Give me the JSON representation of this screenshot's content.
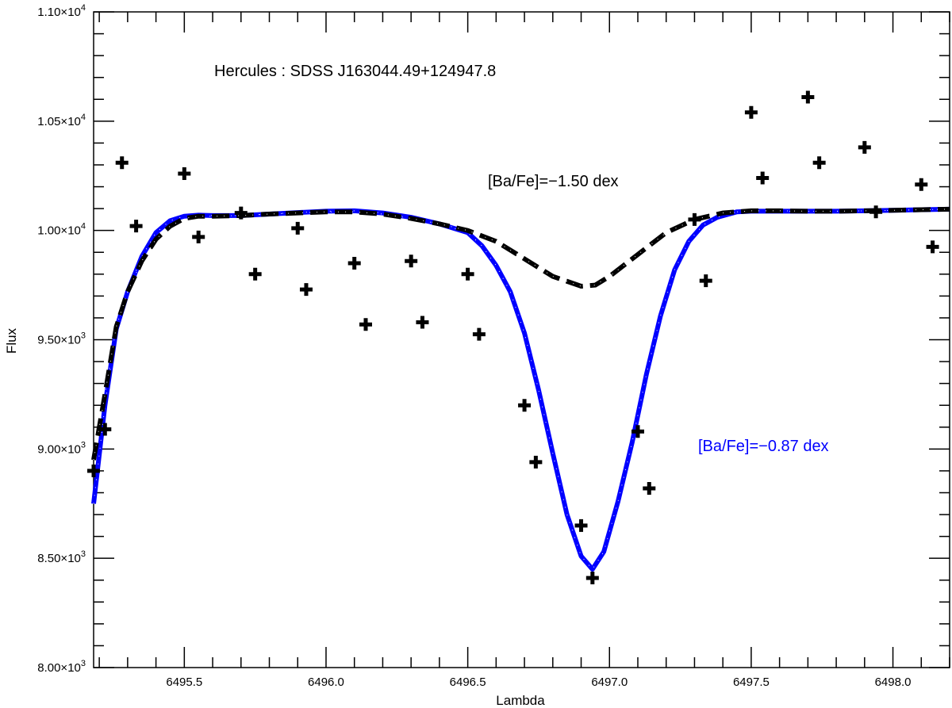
{
  "chart_data": {
    "type": "line",
    "title": "Hercules : SDSS J163044.49+124947.8",
    "xlabel": "Lambda",
    "ylabel": "Flux",
    "xlim": [
      6495.18,
      6498.2
    ],
    "ylim": [
      8000,
      11000
    ],
    "x_ticks": [
      6495.5,
      6496.0,
      6496.5,
      6497.0,
      6497.5,
      6498.0
    ],
    "x_tick_labels": [
      "6495.5",
      "6496.0",
      "6496.5",
      "6497.0",
      "6497.5",
      "6498.0"
    ],
    "y_ticks": [
      8000,
      8500,
      9000,
      9500,
      10000,
      10500,
      11000
    ],
    "y_tick_labels": [
      {
        "mantissa": "8.00",
        "exp": "3"
      },
      {
        "mantissa": "8.50",
        "exp": "3"
      },
      {
        "mantissa": "9.00",
        "exp": "3"
      },
      {
        "mantissa": "9.50",
        "exp": "3"
      },
      {
        "mantissa": "1.00",
        "exp": "4"
      },
      {
        "mantissa": "1.05",
        "exp": "4"
      },
      {
        "mantissa": "1.10",
        "exp": "4"
      }
    ],
    "grid": false,
    "annotations": [
      {
        "text": "[Ba/Fe]=−1.50 dex",
        "color": "#000000",
        "x": 6496.9,
        "y": 10230
      },
      {
        "text": "[Ba/Fe]=−0.87 dex",
        "color": "#0000ff",
        "x": 6497.6,
        "y": 9030
      }
    ],
    "series": [
      {
        "style": "solid",
        "color": "#0000ff",
        "x": [
          6495.18,
          6495.22,
          6495.26,
          6495.3,
          6495.35,
          6495.4,
          6495.45,
          6495.5,
          6495.55,
          6495.6,
          6495.7,
          6495.8,
          6495.9,
          6496.0,
          6496.1,
          6496.2,
          6496.3,
          6496.4,
          6496.5,
          6496.55,
          6496.6,
          6496.65,
          6496.7,
          6496.75,
          6496.8,
          6496.85,
          6496.9,
          6496.94,
          6496.98,
          6497.03,
          6497.08,
          6497.13,
          6497.18,
          6497.23,
          6497.28,
          6497.33,
          6497.38,
          6497.45,
          6497.5,
          6497.6,
          6497.7,
          6497.8,
          6497.9,
          6498.0,
          6498.1,
          6498.2
        ],
        "y": [
          8750,
          9200,
          9550,
          9720,
          9880,
          9990,
          10045,
          10065,
          10070,
          10068,
          10068,
          10075,
          10082,
          10088,
          10090,
          10080,
          10060,
          10030,
          9990,
          9930,
          9840,
          9720,
          9530,
          9270,
          8980,
          8700,
          8510,
          8450,
          8530,
          8760,
          9030,
          9340,
          9610,
          9820,
          9950,
          10025,
          10060,
          10085,
          10088,
          10088,
          10088,
          10088,
          10090,
          10092,
          10095,
          10097
        ]
      },
      {
        "style": "dashed",
        "color": "#000000",
        "x": [
          6495.18,
          6495.22,
          6495.26,
          6495.3,
          6495.35,
          6495.4,
          6495.45,
          6495.5,
          6495.55,
          6495.6,
          6495.7,
          6495.8,
          6495.9,
          6496.0,
          6496.1,
          6496.2,
          6496.3,
          6496.4,
          6496.5,
          6496.6,
          6496.7,
          6496.8,
          6496.9,
          6496.95,
          6497.0,
          6497.1,
          6497.2,
          6497.3,
          6497.4,
          6497.5,
          6497.6,
          6497.7,
          6497.8,
          6497.9,
          6498.0,
          6498.1,
          6498.2
        ],
        "y": [
          8950,
          9250,
          9560,
          9720,
          9860,
          9960,
          10020,
          10055,
          10065,
          10065,
          10068,
          10075,
          10080,
          10085,
          10085,
          10075,
          10055,
          10030,
          10000,
          9950,
          9870,
          9790,
          9745,
          9750,
          9790,
          9890,
          9990,
          10050,
          10080,
          10090,
          10090,
          10088,
          10088,
          10090,
          10092,
          10095,
          10097
        ]
      }
    ],
    "points": {
      "marker": "plus",
      "color": "#000000",
      "x": [
        6495.18,
        6495.22,
        6495.28,
        6495.33,
        6495.5,
        6495.55,
        6495.7,
        6495.75,
        6495.9,
        6495.93,
        6496.1,
        6496.14,
        6496.3,
        6496.34,
        6496.5,
        6496.54,
        6496.7,
        6496.74,
        6496.9,
        6496.94,
        6497.1,
        6497.14,
        6497.3,
        6497.34,
        6497.5,
        6497.54,
        6497.7,
        6497.74,
        6497.9,
        6497.94,
        6498.1,
        6498.14
      ],
      "y": [
        8900,
        9090,
        10310,
        10020,
        10260,
        9970,
        10080,
        9800,
        10010,
        9730,
        9850,
        9570,
        9860,
        9580,
        9800,
        9525,
        9200,
        8940,
        8650,
        8410,
        9080,
        8820,
        10050,
        9770,
        10540,
        10240,
        10610,
        10310,
        10380,
        10085,
        10210,
        9925
      ]
    }
  }
}
